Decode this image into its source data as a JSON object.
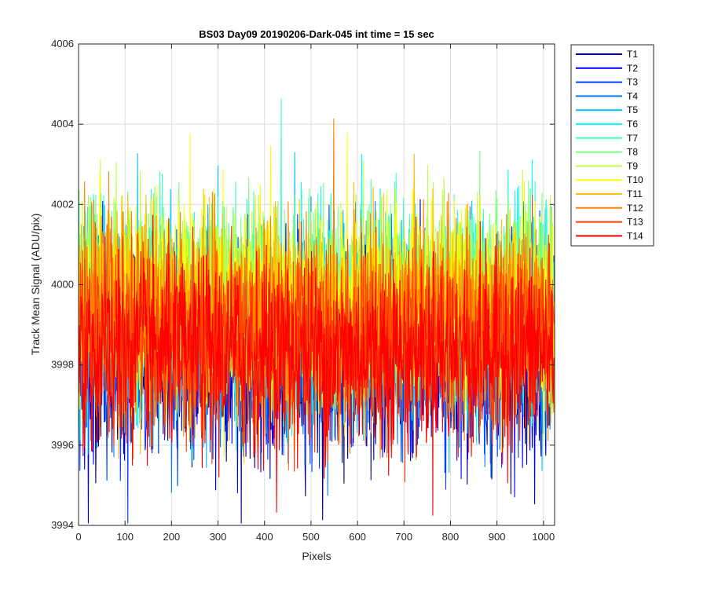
{
  "chart_data": {
    "type": "line",
    "title": "BS03 Day09 20190206-Dark-045 int time = 15 sec",
    "xlabel": "Pixels",
    "ylabel": "Track Mean Signal (ADU/pix)",
    "xlim": [
      0,
      1024
    ],
    "ylim": [
      3994,
      4006
    ],
    "xticks": [
      0,
      100,
      200,
      300,
      400,
      500,
      600,
      700,
      800,
      900,
      1000
    ],
    "yticks": [
      3994,
      3996,
      3998,
      4000,
      4002,
      4004,
      4006
    ],
    "grid": true,
    "legend_position": "outside-top-right",
    "n_points": 1024,
    "series": [
      {
        "name": "T1",
        "color": "#00008f",
        "mean": 3998.2,
        "spread": 1.2
      },
      {
        "name": "T2",
        "color": "#0000ff",
        "mean": 3998.3,
        "spread": 1.2
      },
      {
        "name": "T3",
        "color": "#0040ff",
        "mean": 3998.5,
        "spread": 1.2
      },
      {
        "name": "T4",
        "color": "#0080ff",
        "mean": 3998.8,
        "spread": 1.2
      },
      {
        "name": "T5",
        "color": "#00bfff",
        "mean": 3999.0,
        "spread": 1.2
      },
      {
        "name": "T6",
        "color": "#00ffff",
        "mean": 3999.3,
        "spread": 1.2
      },
      {
        "name": "T7",
        "color": "#40ffbf",
        "mean": 3999.5,
        "spread": 1.2
      },
      {
        "name": "T8",
        "color": "#80ff80",
        "mean": 3999.7,
        "spread": 1.2
      },
      {
        "name": "T9",
        "color": "#bfff40",
        "mean": 3999.7,
        "spread": 1.2
      },
      {
        "name": "T10",
        "color": "#ffff00",
        "mean": 3999.5,
        "spread": 1.2
      },
      {
        "name": "T11",
        "color": "#ffbf00",
        "mean": 3999.3,
        "spread": 1.2
      },
      {
        "name": "T12",
        "color": "#ff8000",
        "mean": 3999.0,
        "spread": 1.2
      },
      {
        "name": "T13",
        "color": "#ff4000",
        "mean": 3998.6,
        "spread": 1.2
      },
      {
        "name": "T14",
        "color": "#ff0000",
        "mean": 3998.3,
        "spread": 1.2
      }
    ]
  }
}
